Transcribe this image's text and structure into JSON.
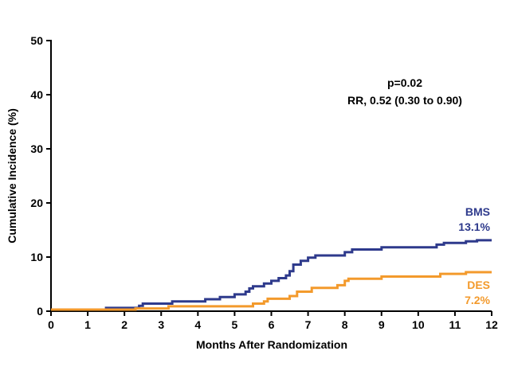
{
  "chart_data": {
    "type": "line",
    "xlabel": "Months After Randomization",
    "ylabel": "Cumulative Incidence (%)",
    "xlim": [
      0,
      12
    ],
    "ylim": [
      0,
      50
    ],
    "xticks": [
      0,
      1,
      2,
      3,
      4,
      5,
      6,
      7,
      8,
      9,
      10,
      11,
      12
    ],
    "yticks": [
      0,
      10,
      20,
      30,
      40,
      50
    ],
    "grid": false,
    "annotations": [
      "p=0.02",
      "RR, 0.52 (0.30 to 0.90)"
    ],
    "series": [
      {
        "name": "BMS",
        "end_label": "13.1%",
        "color": "#2E3A8C",
        "points": [
          [
            0,
            0.3
          ],
          [
            1.5,
            0.3
          ],
          [
            1.5,
            0.6
          ],
          [
            2.4,
            0.6
          ],
          [
            2.4,
            1.0
          ],
          [
            2.5,
            1.0
          ],
          [
            2.5,
            1.4
          ],
          [
            3.3,
            1.4
          ],
          [
            3.3,
            1.8
          ],
          [
            4.2,
            1.8
          ],
          [
            4.2,
            2.2
          ],
          [
            4.6,
            2.2
          ],
          [
            4.6,
            2.6
          ],
          [
            5.0,
            2.6
          ],
          [
            5.0,
            3.1
          ],
          [
            5.3,
            3.1
          ],
          [
            5.3,
            3.6
          ],
          [
            5.4,
            3.6
          ],
          [
            5.4,
            4.2
          ],
          [
            5.5,
            4.2
          ],
          [
            5.5,
            4.6
          ],
          [
            5.8,
            4.6
          ],
          [
            5.8,
            5.1
          ],
          [
            6.0,
            5.1
          ],
          [
            6.0,
            5.6
          ],
          [
            6.2,
            5.6
          ],
          [
            6.2,
            6.1
          ],
          [
            6.4,
            6.1
          ],
          [
            6.4,
            6.6
          ],
          [
            6.5,
            6.6
          ],
          [
            6.5,
            7.4
          ],
          [
            6.6,
            7.4
          ],
          [
            6.6,
            8.6
          ],
          [
            6.8,
            8.6
          ],
          [
            6.8,
            9.3
          ],
          [
            7.0,
            9.3
          ],
          [
            7.0,
            9.9
          ],
          [
            7.2,
            9.9
          ],
          [
            7.2,
            10.3
          ],
          [
            8.0,
            10.3
          ],
          [
            8.0,
            10.9
          ],
          [
            8.2,
            10.9
          ],
          [
            8.2,
            11.4
          ],
          [
            9.0,
            11.4
          ],
          [
            9.0,
            11.8
          ],
          [
            10.5,
            11.8
          ],
          [
            10.5,
            12.3
          ],
          [
            10.7,
            12.3
          ],
          [
            10.7,
            12.6
          ],
          [
            11.3,
            12.6
          ],
          [
            11.3,
            12.9
          ],
          [
            11.6,
            12.9
          ],
          [
            11.6,
            13.1
          ],
          [
            12.0,
            13.1
          ]
        ]
      },
      {
        "name": "DES",
        "end_label": "7.2%",
        "color": "#F39A2C",
        "points": [
          [
            0,
            0.3
          ],
          [
            2.3,
            0.3
          ],
          [
            2.3,
            0.5
          ],
          [
            3.2,
            0.5
          ],
          [
            3.2,
            0.9
          ],
          [
            5.5,
            0.9
          ],
          [
            5.5,
            1.4
          ],
          [
            5.8,
            1.4
          ],
          [
            5.8,
            1.8
          ],
          [
            5.9,
            1.8
          ],
          [
            5.9,
            2.3
          ],
          [
            6.5,
            2.3
          ],
          [
            6.5,
            2.8
          ],
          [
            6.7,
            2.8
          ],
          [
            6.7,
            3.6
          ],
          [
            7.1,
            3.6
          ],
          [
            7.1,
            4.3
          ],
          [
            7.8,
            4.3
          ],
          [
            7.8,
            4.8
          ],
          [
            8.0,
            4.8
          ],
          [
            8.0,
            5.6
          ],
          [
            8.1,
            5.6
          ],
          [
            8.1,
            6.0
          ],
          [
            9.0,
            6.0
          ],
          [
            9.0,
            6.4
          ],
          [
            10.6,
            6.4
          ],
          [
            10.6,
            6.9
          ],
          [
            11.3,
            6.9
          ],
          [
            11.3,
            7.2
          ],
          [
            12.0,
            7.2
          ]
        ]
      }
    ]
  }
}
